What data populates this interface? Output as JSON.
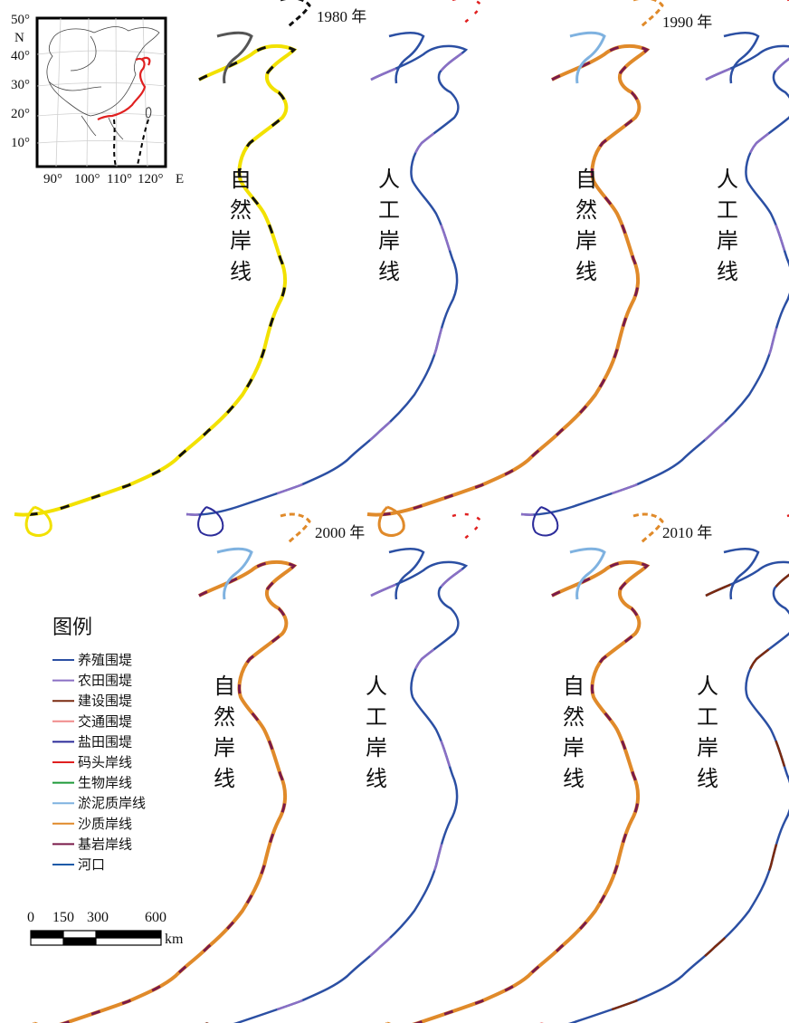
{
  "panels": [
    {
      "year_label": "1980 年",
      "natural_label": [
        "自",
        "然",
        "岸",
        "线"
      ],
      "artificial_label": [
        "人",
        "工",
        "岸",
        "线"
      ]
    },
    {
      "year_label": "1990 年",
      "natural_label": [
        "自",
        "然",
        "岸",
        "线"
      ],
      "artificial_label": [
        "人",
        "工",
        "岸",
        "线"
      ]
    },
    {
      "year_label": "2000 年",
      "natural_label": [
        "自",
        "然",
        "岸",
        "线"
      ],
      "artificial_label": [
        "人",
        "工",
        "岸",
        "线"
      ]
    },
    {
      "year_label": "2010 年",
      "natural_label": [
        "自",
        "然",
        "岸",
        "线"
      ],
      "artificial_label": [
        "人",
        "工",
        "岸",
        "线"
      ]
    }
  ],
  "inset": {
    "lat_labels": [
      "50°",
      "N",
      "40°",
      "30°",
      "20°",
      "10°"
    ],
    "lon_labels": [
      "90°",
      "100°",
      "110°",
      "120°",
      "E"
    ]
  },
  "legend": {
    "title": "图例",
    "items": [
      {
        "label": "养殖围堤",
        "color": "#2b4fa3"
      },
      {
        "label": "农田围堤",
        "color": "#8a6fc4"
      },
      {
        "label": "建设围堤",
        "color": "#7a2a10"
      },
      {
        "label": "交通围堤",
        "color": "#f08a8a"
      },
      {
        "label": "盐田围堤",
        "color": "#2c2c9a"
      },
      {
        "label": "码头岸线",
        "color": "#e02020"
      },
      {
        "label": "生物岸线",
        "color": "#1f9a3a"
      },
      {
        "label": "淤泥质岸线",
        "color": "#7fb2e0"
      },
      {
        "label": "沙质岸线",
        "color": "#e08a2a"
      },
      {
        "label": "基岩岸线",
        "color": "#7a1a4a"
      },
      {
        "label": "河口",
        "color": "#1a5aa8"
      }
    ]
  },
  "scale_bar": {
    "labels": [
      "0",
      "150",
      "300",
      "600"
    ],
    "unit": "km"
  }
}
